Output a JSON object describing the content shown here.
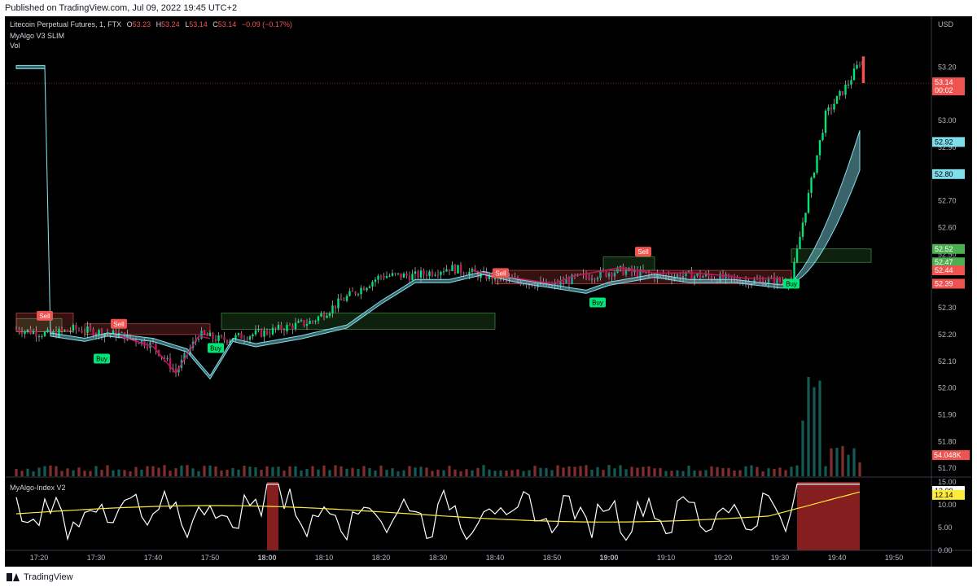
{
  "header": {
    "published": "Published on TradingView.com, Jul 09, 2022 19:45 UTC+2"
  },
  "footer": {
    "brand": "TradingView"
  },
  "legend": {
    "symbol": "Litecoin Perpetual Futures, 1, FTX",
    "o_label": "O",
    "o_value": "53.23",
    "h_label": "H",
    "h_value": "53.24",
    "l_label": "L",
    "l_value": "53.14",
    "c_label": "C",
    "c_value": "53.14",
    "change": "−0.09 (−0.17%)",
    "indicator1": "MyAlgo V3 SLIM",
    "indicator2": "Vol",
    "pane2_title": "MyAlgo-Index V2"
  },
  "colors": {
    "up": "#26a69a",
    "up_bright": "#00e676",
    "down": "#ef5350",
    "down_magenta": "#c2185b",
    "band": "#80deea",
    "signal_buy": "#00e676",
    "signal_sell": "#ef5350",
    "oscillator": "#ffffff",
    "osc_avg": "#ffeb3b"
  },
  "chart_data": [
    {
      "type": "candlestick",
      "title": "Litecoin Perpetual Futures, 1, FTX",
      "currency": "USD",
      "x_ticks": [
        "17:20",
        "17:30",
        "17:40",
        "17:50",
        "18:00",
        "18:10",
        "18:20",
        "18:30",
        "18:40",
        "18:50",
        "19:00",
        "19:10",
        "19:20",
        "19:30",
        "19:40",
        "19:50"
      ],
      "y_ticks": [
        "53.20",
        "53.00",
        "52.90",
        "52.80",
        "52.70",
        "52.60",
        "52.50",
        "52.30",
        "52.20",
        "52.10",
        "52.00",
        "51.90",
        "51.80",
        "51.70"
      ],
      "ylim": [
        51.67,
        53.39
      ],
      "last_price": {
        "value": "53.14",
        "countdown": "00:02"
      },
      "price_labels": [
        {
          "value": "52.92",
          "color": "#80deea"
        },
        {
          "value": "52.80",
          "color": "#80deea"
        },
        {
          "value": "52.52",
          "color": "#4caf50"
        },
        {
          "value": "52.47",
          "color": "#4caf50"
        },
        {
          "value": "52.44",
          "color": "#ef5350"
        },
        {
          "value": "52.39",
          "color": "#ef5350"
        }
      ],
      "volume_label": "54.048K",
      "signals": [
        {
          "text": "Sell",
          "time": "17:21",
          "price": 52.27
        },
        {
          "text": "Sell",
          "time": "17:34",
          "price": 52.24
        },
        {
          "text": "Buy",
          "time": "17:31",
          "price": 52.11
        },
        {
          "text": "Buy",
          "time": "17:51",
          "price": 52.15
        },
        {
          "text": "Sell",
          "time": "18:41",
          "price": 52.43
        },
        {
          "text": "Buy",
          "time": "18:58",
          "price": 52.32
        },
        {
          "text": "Sell",
          "time": "19:06",
          "price": 52.51
        },
        {
          "text": "Buy",
          "time": "19:32",
          "price": 52.39
        }
      ],
      "zones": [
        {
          "type": "support",
          "start": "17:16",
          "end": "17:24",
          "top": 52.26,
          "bottom": 52.21
        },
        {
          "type": "resistance",
          "start": "17:16",
          "end": "17:26",
          "top": 52.28,
          "bottom": 52.21
        },
        {
          "type": "resistance",
          "start": "17:28",
          "end": "17:50",
          "top": 52.24,
          "bottom": 52.2
        },
        {
          "type": "support",
          "start": "17:52",
          "end": "18:40",
          "top": 52.28,
          "bottom": 52.22
        },
        {
          "type": "support",
          "start": "18:59",
          "end": "19:08",
          "top": 52.49,
          "bottom": 52.44
        },
        {
          "type": "resistance",
          "start": "18:40",
          "end": "19:32",
          "top": 52.44,
          "bottom": 52.39
        },
        {
          "type": "support",
          "start": "19:32",
          "end": "19:46",
          "top": 52.52,
          "bottom": 52.47
        }
      ]
    },
    {
      "type": "line",
      "title": "MyAlgo-Index V2",
      "y_ticks": [
        "15.00",
        "10.00",
        "5.00",
        "0.00"
      ],
      "ylim": [
        0,
        15.5
      ],
      "value_labels": [
        {
          "value": "13.00",
          "color": "#ffffff"
        },
        {
          "value": "12.14",
          "color": "#ffeb3b"
        }
      ],
      "highlight_ranges": [
        {
          "start": "18:00",
          "end": "18:02"
        },
        {
          "start": "19:33",
          "end": "19:44"
        }
      ]
    }
  ]
}
